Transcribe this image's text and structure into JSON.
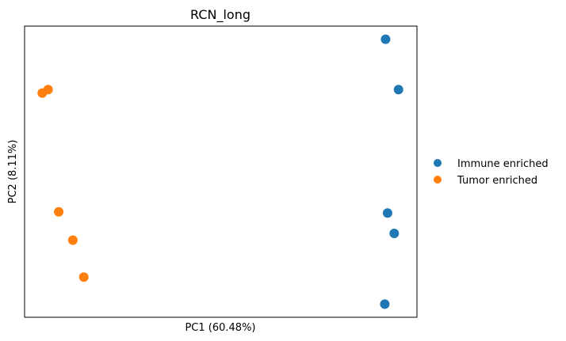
{
  "chart_data": {
    "type": "scatter",
    "title": "RCN_long",
    "xlabel": "PC1 (60.48%)",
    "ylabel": "PC2 (8.11%)",
    "xticks": false,
    "yticks": false,
    "grid": false,
    "legend_position": "right",
    "xlim": [
      0.0,
      1.0
    ],
    "ylim": [
      0.0,
      1.0
    ],
    "series": [
      {
        "name": "Immune enriched",
        "color": "#1f77b4",
        "points": [
          {
            "x": 0.92,
            "y": 0.955
          },
          {
            "x": 0.953,
            "y": 0.782
          },
          {
            "x": 0.925,
            "y": 0.358
          },
          {
            "x": 0.942,
            "y": 0.288
          },
          {
            "x": 0.918,
            "y": 0.045
          }
        ]
      },
      {
        "name": "Tumor enriched",
        "color": "#ff7f0e",
        "points": [
          {
            "x": 0.06,
            "y": 0.782
          },
          {
            "x": 0.045,
            "y": 0.77
          },
          {
            "x": 0.087,
            "y": 0.362
          },
          {
            "x": 0.123,
            "y": 0.265
          },
          {
            "x": 0.151,
            "y": 0.138
          }
        ]
      }
    ]
  }
}
